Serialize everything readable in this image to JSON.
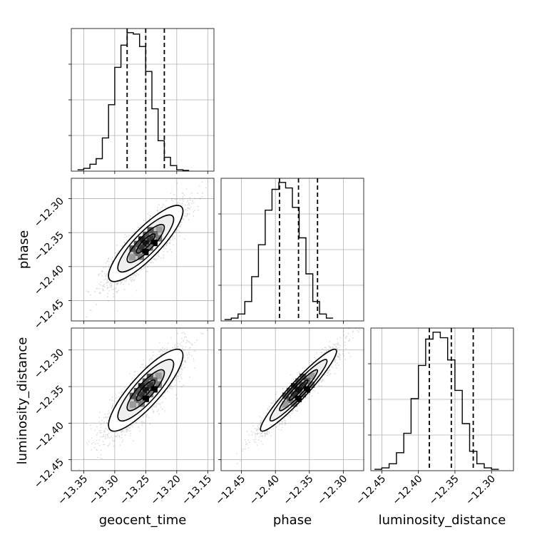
{
  "chart_data": {
    "type": "corner",
    "parameters": [
      {
        "name": "geocent_time",
        "label": "geocent_time",
        "range": [
          -13.37,
          -13.14
        ],
        "ticks": [
          -13.35,
          -13.3,
          -13.25,
          -13.2,
          -13.15
        ],
        "tick_labels": [
          "−13.35",
          "−13.30",
          "−13.25",
          "−13.20",
          "−13.15"
        ],
        "quantiles": [
          -13.28,
          -13.25,
          -13.22
        ]
      },
      {
        "name": "phase",
        "label": "phase",
        "range": [
          -12.48,
          -12.27
        ],
        "ticks": [
          -12.45,
          -12.4,
          -12.35,
          -12.3
        ],
        "tick_labels": [
          "−12.45",
          "−12.40",
          "−12.35",
          "−12.30"
        ],
        "quantiles": [
          -12.394,
          -12.366,
          -12.338
        ]
      },
      {
        "name": "luminosity_distance",
        "label": "luminosity_distance",
        "range": [
          -12.465,
          -12.27
        ],
        "ticks": [
          -12.45,
          -12.4,
          -12.35,
          -12.3
        ],
        "tick_labels": [
          "−12.45",
          "−12.40",
          "−12.35",
          "−12.30"
        ],
        "quantiles": [
          -12.385,
          -12.355,
          -12.325
        ]
      }
    ],
    "histograms": [
      {
        "param": "geocent_time",
        "bin_start": -13.36,
        "bin_width": 0.01,
        "counts": [
          1,
          2,
          5,
          9,
          24,
          48,
          75,
          91,
          100,
          99,
          90,
          72,
          45,
          22,
          10,
          4,
          1,
          0.5
        ]
      },
      {
        "param": "phase",
        "bin_start": -12.475,
        "bin_width": 0.01,
        "counts": [
          1,
          2,
          5,
          14,
          32,
          55,
          80,
          95,
          100,
          96,
          82,
          60,
          34,
          14,
          5,
          2
        ]
      },
      {
        "param": "luminosity_distance",
        "bin_start": -12.46,
        "bin_width": 0.01,
        "counts": [
          1,
          2,
          5,
          13,
          27,
          52,
          76,
          95,
          100,
          96,
          80,
          58,
          34,
          14,
          5,
          2,
          1
        ]
      }
    ],
    "pairs": [
      {
        "x": "geocent_time",
        "y": "phase",
        "center": [
          -13.25,
          -12.366
        ],
        "sd": [
          0.03,
          0.028
        ],
        "correlation": 0.85
      },
      {
        "x": "geocent_time",
        "y": "luminosity_distance",
        "center": [
          -13.25,
          -12.355
        ],
        "sd": [
          0.03,
          0.028
        ],
        "correlation": 0.85
      },
      {
        "x": "phase",
        "y": "luminosity_distance",
        "center": [
          -12.366,
          -12.355
        ],
        "sd": [
          0.028,
          0.028
        ],
        "correlation": 0.95
      }
    ],
    "contour_levels": [
      0.5,
      1.0,
      1.5,
      2.0
    ],
    "grid": true
  }
}
